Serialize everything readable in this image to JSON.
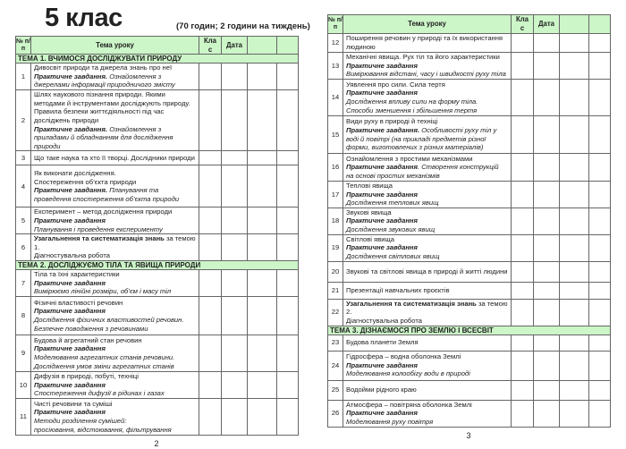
{
  "left_page": {
    "title": "5 клас",
    "subtitle": "(70 годин; 2 години на тиждень)",
    "page_number": "2",
    "headers": [
      "№ п/п",
      "Тема уроку",
      "Клас",
      "Дата",
      "",
      ""
    ],
    "rows": [
      {
        "theme": "ТЕМА 1. ВЧИМОСЯ ДОСЛІДЖУВАТИ ПРИРОДУ"
      },
      {
        "num": "1",
        "lines": [
          [
            {
              "t": "Дивосвіт природи та джерела знань про неї",
              "s": "n"
            }
          ],
          [
            {
              "t": "Практичне завдання.",
              "s": "bi"
            },
            {
              "t": " Ознайомлення з джерелами інформації природничого змісту",
              "s": "i"
            }
          ]
        ]
      },
      {
        "num": "2",
        "lines": [
          [
            {
              "t": "Шлях наукового пізнання природи. Якими методами й інструментами досліджують природу. Правила безпеки життєдіяльності під час досліджень природи",
              "s": "n"
            }
          ],
          [
            {
              "t": "Практичне завдання.",
              "s": "bi"
            },
            {
              "t": " Ознайомлення з приладами й обладнанням для дослідження природи",
              "s": "i"
            }
          ]
        ]
      },
      {
        "num": "3",
        "lines": [
          [
            {
              "t": "Що таке наука та хто її творці. Дослідники природи",
              "s": "n"
            }
          ]
        ]
      },
      {
        "num": "4",
        "lines": [
          [
            {
              "t": "Як виконати дослідження.",
              "s": "n"
            }
          ],
          [
            {
              "t": "Спостереження об’єкта природи",
              "s": "n"
            }
          ],
          [
            {
              "t": "Практичне завдання.",
              "s": "bi"
            },
            {
              "t": " Планування та проведення спостереження об’єкта природи",
              "s": "i"
            }
          ]
        ]
      },
      {
        "num": "5",
        "lines": [
          [
            {
              "t": "Експеримент – метод дослідження природи",
              "s": "n"
            }
          ],
          [
            {
              "t": "Практичне завдання",
              "s": "bi"
            }
          ],
          [
            {
              "t": "Планування і проведення експерименту",
              "s": "i"
            }
          ]
        ]
      },
      {
        "num": "6",
        "lines": [
          [
            {
              "t": "Узагальнення та систематизація знань",
              "s": "b"
            },
            {
              "t": " за темою 1.",
              "s": "n"
            }
          ],
          [
            {
              "t": "Діагностувальна робота",
              "s": "n"
            }
          ]
        ]
      },
      {
        "theme": "ТЕМА 2. ДОСЛІДЖУЄМО ТІЛА ТА ЯВИЩА ПРИРОДИ"
      },
      {
        "num": "7",
        "lines": [
          [
            {
              "t": "Тіла та їхні характеристики",
              "s": "n"
            }
          ],
          [
            {
              "t": "Практичне завдання",
              "s": "bi"
            }
          ],
          [
            {
              "t": "Вимірюємо лінійні розміри, об’єм і масу тіл",
              "s": "i"
            }
          ]
        ]
      },
      {
        "num": "8",
        "lines": [
          [
            {
              "t": "Фізичні властивості речовин",
              "s": "n"
            }
          ],
          [
            {
              "t": "Практичне завдання",
              "s": "bi"
            }
          ],
          [
            {
              "t": "Дослідження фізичних властивостей речовин.",
              "s": "i"
            }
          ],
          [
            {
              "t": "Безпечне поводження з речовинами",
              "s": "i"
            }
          ]
        ]
      },
      {
        "num": "9",
        "lines": [
          [
            {
              "t": "Будова й агрегатний стан речовин",
              "s": "n"
            }
          ],
          [
            {
              "t": "Практичне завдання",
              "s": "bi"
            }
          ],
          [
            {
              "t": "Моделювання агрегатних станів речовини.",
              "s": "i"
            }
          ],
          [
            {
              "t": "Дослідження умов зміни агрегатних станів",
              "s": "i"
            }
          ]
        ]
      },
      {
        "num": "10",
        "lines": [
          [
            {
              "t": "Дифузія в природі, побуті, техніці",
              "s": "n"
            }
          ],
          [
            {
              "t": "Практичне завдання",
              "s": "bi"
            }
          ],
          [
            {
              "t": "Спостереження дифузії в рідинах і газах",
              "s": "i"
            }
          ]
        ]
      },
      {
        "num": "11",
        "lines": [
          [
            {
              "t": "Чисті речовини та суміші",
              "s": "n"
            }
          ],
          [
            {
              "t": "Практичне завдання",
              "s": "bi"
            }
          ],
          [
            {
              "t": "Методи розділення сумішей:",
              "s": "i"
            }
          ],
          [
            {
              "t": "просіювання, відстоювання, фільтрування",
              "s": "i"
            }
          ]
        ]
      }
    ]
  },
  "right_page": {
    "page_number": "3",
    "headers": [
      "№ п/п",
      "Тема уроку",
      "Клас",
      "Дата",
      "",
      ""
    ],
    "rows": [
      {
        "num": "12",
        "lines": [
          [
            {
              "t": "Поширення речовин у природі та їх використання людиною",
              "s": "n"
            }
          ]
        ]
      },
      {
        "num": "13",
        "lines": [
          [
            {
              "t": "Механічні явища. Рух тіл та його характеристики",
              "s": "n"
            }
          ],
          [
            {
              "t": "Практичне завдання",
              "s": "bi"
            }
          ],
          [
            {
              "t": "Вимірювання відстані, часу і швидкості руху тіла",
              "s": "i"
            }
          ]
        ]
      },
      {
        "num": "14",
        "lines": [
          [
            {
              "t": "Уявлення про сили. Сила тертя",
              "s": "n"
            }
          ],
          [
            {
              "t": "Практичне завдання",
              "s": "bi"
            }
          ],
          [
            {
              "t": "Дослідження впливу сили на форму тіла.",
              "s": "i"
            }
          ],
          [
            {
              "t": "Способи зменшення і збільшення тертя",
              "s": "i"
            }
          ]
        ]
      },
      {
        "num": "15",
        "lines": [
          [
            {
              "t": "Види руху в природі й техніці",
              "s": "n"
            }
          ],
          [
            {
              "t": "Практичне завдання.",
              "s": "bi"
            },
            {
              "t": " Особливості руху тіл у воді й повітрі (на прикладі предметів різної форми, виготовлених з різних матеріалів)",
              "s": "i"
            }
          ]
        ]
      },
      {
        "num": "16",
        "lines": [
          [
            {
              "t": "Ознайомлення з простими механізмами",
              "s": "n"
            }
          ],
          [
            {
              "t": "Практичне завдання",
              "s": "bi"
            },
            {
              "t": ". Створення конструкцій на основі простих механізмів",
              "s": "i"
            }
          ]
        ]
      },
      {
        "num": "17",
        "lines": [
          [
            {
              "t": "Теплові явища",
              "s": "n"
            }
          ],
          [
            {
              "t": "Практичне завдання",
              "s": "bi"
            }
          ],
          [
            {
              "t": "Дослідження теплових явищ",
              "s": "i"
            }
          ]
        ]
      },
      {
        "num": "18",
        "lines": [
          [
            {
              "t": "Звукові явища",
              "s": "n"
            }
          ],
          [
            {
              "t": "Практичне завдання",
              "s": "bi"
            }
          ],
          [
            {
              "t": "Дослідження звукових явищ",
              "s": "i"
            }
          ]
        ]
      },
      {
        "num": "19",
        "lines": [
          [
            {
              "t": "Світлові явища",
              "s": "n"
            }
          ],
          [
            {
              "t": "Практичне завдання",
              "s": "bi"
            }
          ],
          [
            {
              "t": "Дослідження світлових явищ",
              "s": "i"
            }
          ]
        ]
      },
      {
        "num": "20",
        "lines": [
          [
            {
              "t": "Звукові та світлові явища в природі й житті людини",
              "s": "n"
            }
          ]
        ]
      },
      {
        "num": "21",
        "lines": [
          [
            {
              "t": "Презентації навчальних проєктів",
              "s": "n"
            }
          ]
        ]
      },
      {
        "num": "22",
        "lines": [
          [
            {
              "t": "Узагальнення та систематизація знань",
              "s": "b"
            },
            {
              "t": " за темою 2.",
              "s": "n"
            }
          ],
          [
            {
              "t": "Діагностувальна робота",
              "s": "n"
            }
          ]
        ]
      },
      {
        "theme": "ТЕМА 3. ДІЗНАЄМОСЯ ПРО ЗЕМЛЮ І ВСЕСВІТ"
      },
      {
        "num": "23",
        "lines": [
          [
            {
              "t": "Будова планети Земля",
              "s": "n"
            }
          ]
        ]
      },
      {
        "num": "24",
        "lines": [
          [
            {
              "t": "Гідросфера – водна оболонка Землі",
              "s": "n"
            }
          ],
          [
            {
              "t": "Практичне завдання",
              "s": "bi"
            }
          ],
          [
            {
              "t": "Моделювання колообігу води в природі",
              "s": "i"
            }
          ]
        ]
      },
      {
        "num": "25",
        "lines": [
          [
            {
              "t": "Водойми рідного краю",
              "s": "n"
            }
          ]
        ]
      },
      {
        "num": "26",
        "lines": [
          [
            {
              "t": "Атмосфера – повітряна оболонка Землі",
              "s": "n"
            }
          ],
          [
            {
              "t": "Практичне завдання",
              "s": "bi"
            }
          ],
          [
            {
              "t": "Моделювання руху повітря",
              "s": "i"
            }
          ]
        ]
      }
    ]
  },
  "colors": {
    "header_bg": "#ccf5c8",
    "border": "#666666"
  }
}
